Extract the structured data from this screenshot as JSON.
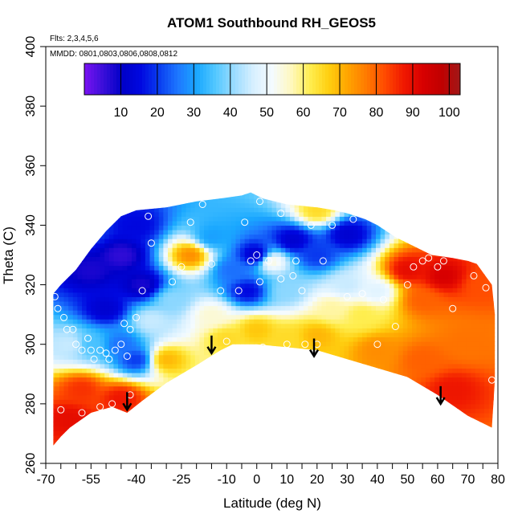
{
  "chart_data": {
    "type": "heatmap",
    "title": "ATOM1 Southbound RH_GEOS5",
    "subtitle_lines": [
      "Flts: 2,3,4,5,6",
      "MMDD: 0801,0803,0806,0808,0812"
    ],
    "xlabel": "Latitude (deg N)",
    "ylabel": "Theta (C)",
    "xlim": [
      -70,
      80
    ],
    "ylim": [
      260,
      400
    ],
    "x_tick_labels": [
      "-70",
      "-55",
      "-40",
      "-25",
      "-10",
      "0",
      "10",
      "20",
      "30",
      "40",
      "50",
      "60",
      "70",
      "80"
    ],
    "x_tick_values": [
      -70,
      -55,
      -40,
      -25,
      -10,
      0,
      10,
      20,
      30,
      40,
      50,
      60,
      70,
      80
    ],
    "x_minor_ticks": [
      -65,
      -60,
      -50,
      -45,
      -35,
      -30,
      -20,
      -15,
      -5,
      5,
      15,
      25,
      35,
      45,
      55,
      65,
      75
    ],
    "y_tick_labels": [
      "260",
      "280",
      "300",
      "320",
      "340",
      "360",
      "380",
      "400"
    ],
    "y_tick_values": [
      260,
      280,
      300,
      320,
      340,
      360,
      380,
      400
    ],
    "colorbar": {
      "range": [
        0,
        103
      ],
      "tick_labels": [
        "10",
        "20",
        "30",
        "40",
        "50",
        "60",
        "70",
        "80",
        "90",
        "100"
      ],
      "tick_values": [
        10,
        20,
        30,
        40,
        50,
        60,
        70,
        80,
        90,
        100
      ],
      "palette": [
        "#7b12f2",
        "#3a0fd9",
        "#0000c8",
        "#0008e0",
        "#0a3ef0",
        "#1e78ff",
        "#1aa8ff",
        "#55c8ff",
        "#9ddcff",
        "#d8f0ff",
        "#f4fbff",
        "#fff8c0",
        "#ffee50",
        "#ffcf10",
        "#ffa500",
        "#ff7a00",
        "#ff4a00",
        "#f01800",
        "#d80000",
        "#c00000",
        "#a01818"
      ]
    },
    "domain_top": [
      [
        -67.5,
        317
      ],
      [
        -65,
        320
      ],
      [
        -60,
        325
      ],
      [
        -55,
        332
      ],
      [
        -50,
        338
      ],
      [
        -45,
        343
      ],
      [
        -40,
        345
      ],
      [
        -30,
        346
      ],
      [
        -20,
        348
      ],
      [
        -12,
        349
      ],
      [
        -5,
        350
      ],
      [
        -2,
        351
      ],
      [
        2,
        349
      ],
      [
        10,
        347
      ],
      [
        20,
        346
      ],
      [
        26,
        345
      ],
      [
        30,
        344
      ],
      [
        36,
        342
      ],
      [
        40,
        340
      ],
      [
        46,
        336
      ],
      [
        52,
        333
      ],
      [
        58,
        330
      ],
      [
        65,
        329
      ],
      [
        70,
        328
      ],
      [
        73,
        327
      ],
      [
        78,
        320
      ],
      [
        79,
        310
      ],
      [
        79,
        290
      ]
    ],
    "domain_bottom": [
      [
        79,
        288
      ],
      [
        78,
        272
      ],
      [
        70,
        276
      ],
      [
        60,
        283
      ],
      [
        50,
        289
      ],
      [
        40,
        292
      ],
      [
        30,
        295
      ],
      [
        20,
        298
      ],
      [
        10,
        299
      ],
      [
        0,
        300
      ],
      [
        -8,
        300
      ],
      [
        -12,
        298
      ],
      [
        -20,
        293
      ],
      [
        -30,
        287
      ],
      [
        -38,
        281
      ],
      [
        -43,
        277
      ],
      [
        -48,
        279
      ],
      [
        -55,
        277
      ],
      [
        -62,
        272
      ],
      [
        -65,
        269
      ],
      [
        -67.5,
        266
      ]
    ],
    "field_centers": [
      {
        "lat": -55,
        "theta": 325,
        "rh": 8
      },
      {
        "lat": -45,
        "theta": 330,
        "rh": 6
      },
      {
        "lat": -38,
        "theta": 320,
        "rh": 8
      },
      {
        "lat": -50,
        "theta": 312,
        "rh": 12
      },
      {
        "lat": -22,
        "theta": 330,
        "rh": 75
      },
      {
        "lat": -15,
        "theta": 336,
        "rh": 30
      },
      {
        "lat": -8,
        "theta": 325,
        "rh": 25
      },
      {
        "lat": 0,
        "theta": 330,
        "rh": 10
      },
      {
        "lat": -3,
        "theta": 318,
        "rh": 15
      },
      {
        "lat": 5,
        "theta": 328,
        "rh": 55
      },
      {
        "lat": 12,
        "theta": 335,
        "rh": 12
      },
      {
        "lat": 20,
        "theta": 330,
        "rh": 20
      },
      {
        "lat": 20,
        "theta": 345,
        "rh": 65
      },
      {
        "lat": 30,
        "theta": 337,
        "rh": 12
      },
      {
        "lat": 30,
        "theta": 320,
        "rh": 45
      },
      {
        "lat": -28,
        "theta": 315,
        "rh": 40
      },
      {
        "lat": -45,
        "theta": 300,
        "rh": 25
      },
      {
        "lat": -55,
        "theta": 300,
        "rh": 35
      },
      {
        "lat": -62,
        "theta": 300,
        "rh": 45
      },
      {
        "lat": -40,
        "theta": 295,
        "rh": 20
      },
      {
        "lat": -58,
        "theta": 285,
        "rh": 85
      },
      {
        "lat": -62,
        "theta": 275,
        "rh": 90
      },
      {
        "lat": -45,
        "theta": 282,
        "rh": 88
      },
      {
        "lat": -30,
        "theta": 295,
        "rh": 70
      },
      {
        "lat": 0,
        "theta": 305,
        "rh": 68
      },
      {
        "lat": 20,
        "theta": 303,
        "rh": 70
      },
      {
        "lat": 35,
        "theta": 310,
        "rh": 62
      },
      {
        "lat": 40,
        "theta": 318,
        "rh": 48
      },
      {
        "lat": 50,
        "theta": 325,
        "rh": 90
      },
      {
        "lat": 62,
        "theta": 323,
        "rh": 93
      },
      {
        "lat": 55,
        "theta": 315,
        "rh": 80
      },
      {
        "lat": 75,
        "theta": 320,
        "rh": 82
      },
      {
        "lat": 55,
        "theta": 295,
        "rh": 80
      },
      {
        "lat": 65,
        "theta": 285,
        "rh": 88
      },
      {
        "lat": 40,
        "theta": 298,
        "rh": 75
      },
      {
        "lat": 10,
        "theta": 302,
        "rh": 65
      },
      {
        "lat": -10,
        "theta": 302,
        "rh": 65
      },
      {
        "lat": 70,
        "theta": 300,
        "rh": 78
      },
      {
        "lat": 25,
        "theta": 312,
        "rh": 58
      },
      {
        "lat": -15,
        "theta": 310,
        "rh": 55
      },
      {
        "lat": -35,
        "theta": 308,
        "rh": 45
      },
      {
        "lat": 10,
        "theta": 318,
        "rh": 40
      },
      {
        "lat": -55,
        "theta": 338,
        "rh": 20
      },
      {
        "lat": -40,
        "theta": 340,
        "rh": 15
      }
    ],
    "observation_points": [
      [
        -67,
        316
      ],
      [
        -66,
        312
      ],
      [
        -64,
        309
      ],
      [
        -63,
        305
      ],
      [
        -61,
        305
      ],
      [
        -60,
        300
      ],
      [
        -58,
        298
      ],
      [
        -56,
        302
      ],
      [
        -55,
        298
      ],
      [
        -54,
        295
      ],
      [
        -52,
        298
      ],
      [
        -50,
        297
      ],
      [
        -49,
        295
      ],
      [
        -47,
        298
      ],
      [
        -45,
        300
      ],
      [
        -44,
        307
      ],
      [
        -43,
        296
      ],
      [
        -42,
        305
      ],
      [
        -40,
        309
      ],
      [
        -38,
        318
      ],
      [
        -36,
        343
      ],
      [
        -35,
        334
      ],
      [
        -28,
        321
      ],
      [
        -25,
        326
      ],
      [
        -22,
        341
      ],
      [
        -18,
        347
      ],
      [
        -15,
        327
      ],
      [
        -12,
        318
      ],
      [
        -10,
        301
      ],
      [
        -6,
        318
      ],
      [
        -4,
        341
      ],
      [
        -2,
        328
      ],
      [
        0,
        330
      ],
      [
        1,
        348
      ],
      [
        1,
        321
      ],
      [
        2,
        299
      ],
      [
        4,
        328
      ],
      [
        8,
        322
      ],
      [
        8,
        344
      ],
      [
        10,
        300
      ],
      [
        12,
        323
      ],
      [
        13,
        328
      ],
      [
        15,
        318
      ],
      [
        16,
        300
      ],
      [
        18,
        340
      ],
      [
        20,
        300
      ],
      [
        22,
        328
      ],
      [
        25,
        340
      ],
      [
        30,
        316
      ],
      [
        32,
        342
      ],
      [
        35,
        317
      ],
      [
        40,
        300
      ],
      [
        42,
        315
      ],
      [
        46,
        306
      ],
      [
        50,
        320
      ],
      [
        52,
        326
      ],
      [
        55,
        328
      ],
      [
        57,
        329
      ],
      [
        60,
        326
      ],
      [
        62,
        328
      ],
      [
        65,
        312
      ],
      [
        67,
        330
      ],
      [
        72,
        323
      ],
      [
        76,
        319
      ],
      [
        78,
        288
      ],
      [
        -65,
        278
      ],
      [
        -58,
        277
      ],
      [
        -52,
        279
      ],
      [
        -48,
        280
      ],
      [
        -42,
        283
      ],
      [
        -60,
        267
      ]
    ],
    "arrows": [
      {
        "lat": -43,
        "theta": 278
      },
      {
        "lat": -15,
        "theta": 297
      },
      {
        "lat": 19,
        "theta": 296
      },
      {
        "lat": 61,
        "theta": 280
      }
    ]
  }
}
